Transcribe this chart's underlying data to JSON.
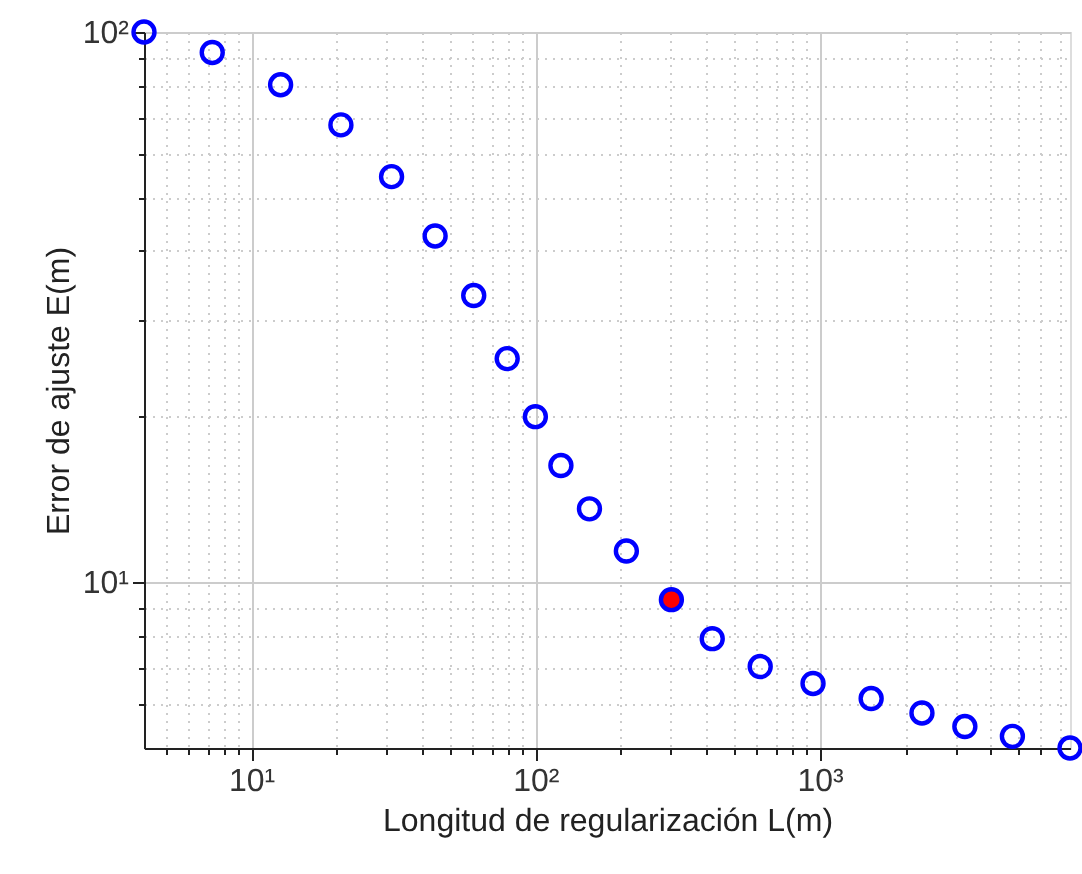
{
  "chart_data": {
    "type": "scatter",
    "xlabel": "Longitud de regularización L(m)",
    "ylabel": "Error de ajuste E(m)",
    "x": [
      4.2,
      7.3,
      12.7,
      20.7,
      31.2,
      44.4,
      60.7,
      79.6,
      100,
      123,
      155,
      209,
      301,
      419,
      618,
      948,
      1518,
      2291,
      3243,
      4766,
      7600
    ],
    "series": [
      {
        "color": "#0000ff",
        "values": [
          100,
          91.8,
          80.2,
          67.8,
          54.6,
          42.6,
          33.2,
          25.5,
          20.0,
          16.3,
          13.6,
          11.4,
          9.3,
          7.9,
          7.03,
          6.55,
          6.15,
          5.79,
          5.47,
          5.25,
          5.0
        ],
        "colors": [
          "#0000ff",
          "#0000ff",
          "#0000ff",
          "#0000ff",
          "#0000ff",
          "#0000ff",
          "#0000ff",
          "#0000ff",
          "#0000ff",
          "#0000ff",
          "#0000ff",
          "#0000ff",
          "#ff0000",
          "#0000ff",
          "#0000ff",
          "#0000ff",
          "#0000ff",
          "#0000ff",
          "#0000ff",
          "#0000ff",
          "#0000ff"
        ]
      }
    ],
    "log": "xy",
    "xlim": [
      4.2,
      7600
    ],
    "ylim": [
      5,
      100
    ],
    "xticks": [
      {
        "value": 5,
        "label": null
      },
      {
        "value": 6,
        "label": null
      },
      {
        "value": 7,
        "label": null
      },
      {
        "value": 8,
        "label": null
      },
      {
        "value": 9,
        "label": null
      },
      {
        "value": 10,
        "label": "10¹"
      },
      {
        "value": 20,
        "label": null
      },
      {
        "value": 30,
        "label": null
      },
      {
        "value": 40,
        "label": null
      },
      {
        "value": 50,
        "label": null
      },
      {
        "value": 60,
        "label": null
      },
      {
        "value": 70,
        "label": null
      },
      {
        "value": 80,
        "label": null
      },
      {
        "value": 90,
        "label": null
      },
      {
        "value": 100,
        "label": "10²"
      },
      {
        "value": 200,
        "label": null
      },
      {
        "value": 300,
        "label": null
      },
      {
        "value": 400,
        "label": null
      },
      {
        "value": 500,
        "label": null
      },
      {
        "value": 600,
        "label": null
      },
      {
        "value": 700,
        "label": null
      },
      {
        "value": 800,
        "label": null
      },
      {
        "value": 900,
        "label": null
      },
      {
        "value": 1000,
        "label": "10³"
      },
      {
        "value": 2000,
        "label": null
      },
      {
        "value": 3000,
        "label": null
      },
      {
        "value": 4000,
        "label": null
      },
      {
        "value": 5000,
        "label": null
      },
      {
        "value": 6000,
        "label": null
      },
      {
        "value": 7000,
        "label": null
      }
    ],
    "yticks": [
      {
        "value": 6,
        "label": null
      },
      {
        "value": 7,
        "label": null
      },
      {
        "value": 8,
        "label": null
      },
      {
        "value": 9,
        "label": null
      },
      {
        "value": 10,
        "label": "10¹"
      },
      {
        "value": 20,
        "label": null
      },
      {
        "value": 30,
        "label": null
      },
      {
        "value": 40,
        "label": null
      },
      {
        "value": 50,
        "label": null
      },
      {
        "value": 60,
        "label": null
      },
      {
        "value": 70,
        "label": null
      },
      {
        "value": 80,
        "label": null
      },
      {
        "value": 90,
        "label": null
      },
      {
        "value": 100,
        "label": "10²"
      }
    ],
    "grid": true,
    "marker": "circle"
  }
}
